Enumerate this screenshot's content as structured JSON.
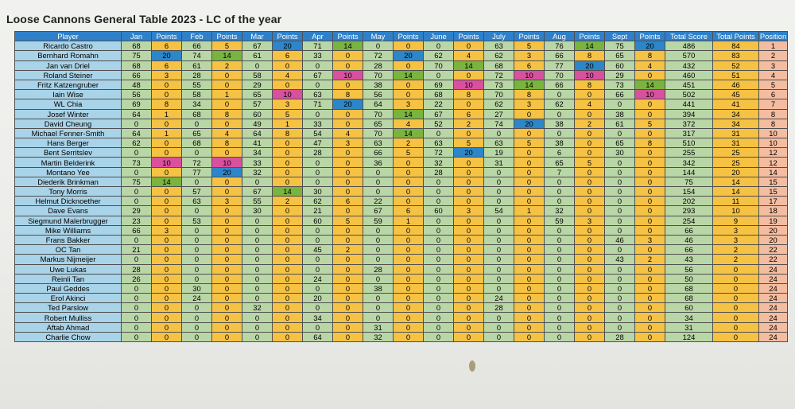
{
  "title": "Loose Cannons General Table 2023 - LC of the year",
  "colors": {
    "header": "#2f80c8",
    "player": "#a9d3e8",
    "month": "#b9d6a6",
    "points": "#f6c244",
    "position": "#f4bca0",
    "highlight_20": "#2c86c9",
    "highlight_14": "#79b43e",
    "highlight_10": "#d9509f"
  },
  "headers": [
    "Player",
    "Jan",
    "Points",
    "Feb",
    "Points",
    "Mar",
    "Points",
    "Apr",
    "Points",
    "May",
    "Points",
    "June",
    "Points",
    "July",
    "Points",
    "Aug",
    "Points",
    "Sept",
    "Points",
    "Total Score",
    "Total Points",
    "Position"
  ],
  "rows": [
    [
      "Ricardo Castro",
      "68",
      "6",
      "66",
      "5",
      "67",
      "20",
      "71",
      "14",
      "0",
      "0",
      "0",
      "0",
      "63",
      "5",
      "76",
      "14",
      "75",
      "20",
      "486",
      "84",
      "1"
    ],
    [
      "Bernhard Romahn",
      "75",
      "20",
      "74",
      "14",
      "61",
      "6",
      "33",
      "0",
      "72",
      "20",
      "62",
      "4",
      "62",
      "3",
      "66",
      "8",
      "65",
      "8",
      "570",
      "83",
      "2"
    ],
    [
      "Jan van Driel",
      "68",
      "6",
      "61",
      "2",
      "0",
      "0",
      "0",
      "0",
      "28",
      "0",
      "70",
      "14",
      "68",
      "6",
      "77",
      "20",
      "60",
      "4",
      "432",
      "52",
      "3"
    ],
    [
      "Roland Steiner",
      "66",
      "3",
      "28",
      "0",
      "58",
      "4",
      "67",
      "10",
      "70",
      "14",
      "0",
      "0",
      "72",
      "10",
      "70",
      "10",
      "29",
      "0",
      "460",
      "51",
      "4"
    ],
    [
      "Fritz Katzengruber",
      "48",
      "0",
      "55",
      "0",
      "29",
      "0",
      "0",
      "0",
      "38",
      "0",
      "69",
      "10",
      "73",
      "14",
      "66",
      "8",
      "73",
      "14",
      "451",
      "46",
      "5"
    ],
    [
      "Iain Wise",
      "56",
      "0",
      "58",
      "1",
      "65",
      "10",
      "63",
      "8",
      "56",
      "0",
      "68",
      "8",
      "70",
      "8",
      "0",
      "0",
      "66",
      "10",
      "502",
      "45",
      "6"
    ],
    [
      "WL Chia",
      "69",
      "8",
      "34",
      "0",
      "57",
      "3",
      "71",
      "20",
      "64",
      "3",
      "22",
      "0",
      "62",
      "3",
      "62",
      "4",
      "0",
      "0",
      "441",
      "41",
      "7"
    ],
    [
      "Josef Winter",
      "64",
      "1",
      "68",
      "8",
      "60",
      "5",
      "0",
      "0",
      "70",
      "14",
      "67",
      "6",
      "27",
      "0",
      "0",
      "0",
      "38",
      "0",
      "394",
      "34",
      "8"
    ],
    [
      "David Cheung",
      "0",
      "0",
      "0",
      "0",
      "49",
      "1",
      "33",
      "0",
      "65",
      "4",
      "52",
      "2",
      "74",
      "20",
      "38",
      "2",
      "61",
      "5",
      "372",
      "34",
      "8"
    ],
    [
      "Michael Fenner-Smith",
      "64",
      "1",
      "65",
      "4",
      "64",
      "8",
      "54",
      "4",
      "70",
      "14",
      "0",
      "0",
      "0",
      "0",
      "0",
      "0",
      "0",
      "0",
      "317",
      "31",
      "10"
    ],
    [
      "Hans Berger",
      "62",
      "0",
      "68",
      "8",
      "41",
      "0",
      "47",
      "3",
      "63",
      "2",
      "63",
      "5",
      "63",
      "5",
      "38",
      "0",
      "65",
      "8",
      "510",
      "31",
      "10"
    ],
    [
      "Bent Serritslev",
      "0",
      "0",
      "0",
      "0",
      "34",
      "0",
      "28",
      "0",
      "66",
      "5",
      "72",
      "20",
      "19",
      "0",
      "6",
      "0",
      "30",
      "0",
      "255",
      "25",
      "12"
    ],
    [
      "Martin Belderink",
      "73",
      "10",
      "72",
      "10",
      "33",
      "0",
      "0",
      "0",
      "36",
      "0",
      "32",
      "0",
      "31",
      "0",
      "65",
      "5",
      "0",
      "0",
      "342",
      "25",
      "12"
    ],
    [
      "Montano Yee",
      "0",
      "0",
      "77",
      "20",
      "32",
      "0",
      "0",
      "0",
      "0",
      "0",
      "28",
      "0",
      "0",
      "0",
      "7",
      "0",
      "0",
      "0",
      "144",
      "20",
      "14"
    ],
    [
      "Diederik Brinkman",
      "75",
      "14",
      "0",
      "0",
      "0",
      "0",
      "0",
      "0",
      "0",
      "0",
      "0",
      "0",
      "0",
      "0",
      "0",
      "0",
      "0",
      "0",
      "75",
      "14",
      "15"
    ],
    [
      "Tony Morris",
      "0",
      "0",
      "57",
      "0",
      "67",
      "14",
      "30",
      "0",
      "0",
      "0",
      "0",
      "0",
      "0",
      "0",
      "0",
      "0",
      "0",
      "0",
      "154",
      "14",
      "15"
    ],
    [
      "Helmut Dicknoether",
      "0",
      "0",
      "63",
      "3",
      "55",
      "2",
      "62",
      "6",
      "22",
      "0",
      "0",
      "0",
      "0",
      "0",
      "0",
      "0",
      "0",
      "0",
      "202",
      "11",
      "17"
    ],
    [
      "Dave Evans",
      "29",
      "0",
      "0",
      "0",
      "30",
      "0",
      "21",
      "0",
      "67",
      "6",
      "60",
      "3",
      "54",
      "1",
      "32",
      "0",
      "0",
      "0",
      "293",
      "10",
      "18"
    ],
    [
      "Siegmund Malerbrugger",
      "23",
      "0",
      "53",
      "0",
      "0",
      "0",
      "60",
      "5",
      "59",
      "1",
      "0",
      "0",
      "0",
      "0",
      "59",
      "3",
      "0",
      "0",
      "254",
      "9",
      "19"
    ],
    [
      "Mike Williams",
      "66",
      "3",
      "0",
      "0",
      "0",
      "0",
      "0",
      "0",
      "0",
      "0",
      "0",
      "0",
      "0",
      "0",
      "0",
      "0",
      "0",
      "0",
      "66",
      "3",
      "20"
    ],
    [
      "Frans Bakker",
      "0",
      "0",
      "0",
      "0",
      "0",
      "0",
      "0",
      "0",
      "0",
      "0",
      "0",
      "0",
      "0",
      "0",
      "0",
      "0",
      "46",
      "3",
      "46",
      "3",
      "20"
    ],
    [
      "OC Tan",
      "21",
      "0",
      "0",
      "0",
      "0",
      "0",
      "45",
      "2",
      "0",
      "0",
      "0",
      "0",
      "0",
      "0",
      "0",
      "0",
      "0",
      "0",
      "66",
      "2",
      "22"
    ],
    [
      "Markus Nijmeijer",
      "0",
      "0",
      "0",
      "0",
      "0",
      "0",
      "0",
      "0",
      "0",
      "0",
      "0",
      "0",
      "0",
      "0",
      "0",
      "0",
      "43",
      "2",
      "43",
      "2",
      "22"
    ],
    [
      "Uwe Lukas",
      "28",
      "0",
      "0",
      "0",
      "0",
      "0",
      "0",
      "0",
      "28",
      "0",
      "0",
      "0",
      "0",
      "0",
      "0",
      "0",
      "0",
      "0",
      "56",
      "0",
      "24"
    ],
    [
      "Reinli Tan",
      "26",
      "0",
      "0",
      "0",
      "0",
      "0",
      "24",
      "0",
      "0",
      "0",
      "0",
      "0",
      "0",
      "0",
      "0",
      "0",
      "0",
      "0",
      "50",
      "0",
      "24"
    ],
    [
      "Paul Geddes",
      "0",
      "0",
      "30",
      "0",
      "0",
      "0",
      "0",
      "0",
      "38",
      "0",
      "0",
      "0",
      "0",
      "0",
      "0",
      "0",
      "0",
      "0",
      "68",
      "0",
      "24"
    ],
    [
      "Erol Akinci",
      "0",
      "0",
      "24",
      "0",
      "0",
      "0",
      "20",
      "0",
      "0",
      "0",
      "0",
      "0",
      "24",
      "0",
      "0",
      "0",
      "0",
      "0",
      "68",
      "0",
      "24"
    ],
    [
      "Ted Parslow",
      "0",
      "0",
      "0",
      "0",
      "32",
      "0",
      "0",
      "0",
      "0",
      "0",
      "0",
      "0",
      "28",
      "0",
      "0",
      "0",
      "0",
      "0",
      "60",
      "0",
      "24"
    ],
    [
      "Robert Mulliss",
      "0",
      "0",
      "0",
      "0",
      "0",
      "0",
      "34",
      "0",
      "0",
      "0",
      "0",
      "0",
      "0",
      "0",
      "0",
      "0",
      "0",
      "0",
      "34",
      "0",
      "24"
    ],
    [
      "Aftab Ahmad",
      "0",
      "0",
      "0",
      "0",
      "0",
      "0",
      "0",
      "0",
      "31",
      "0",
      "0",
      "0",
      "0",
      "0",
      "0",
      "0",
      "0",
      "0",
      "31",
      "0",
      "24"
    ],
    [
      "Charlie Chow",
      "0",
      "0",
      "0",
      "0",
      "0",
      "0",
      "64",
      "0",
      "32",
      "0",
      "0",
      "0",
      "0",
      "0",
      "0",
      "0",
      "28",
      "0",
      "124",
      "0",
      "24"
    ]
  ]
}
